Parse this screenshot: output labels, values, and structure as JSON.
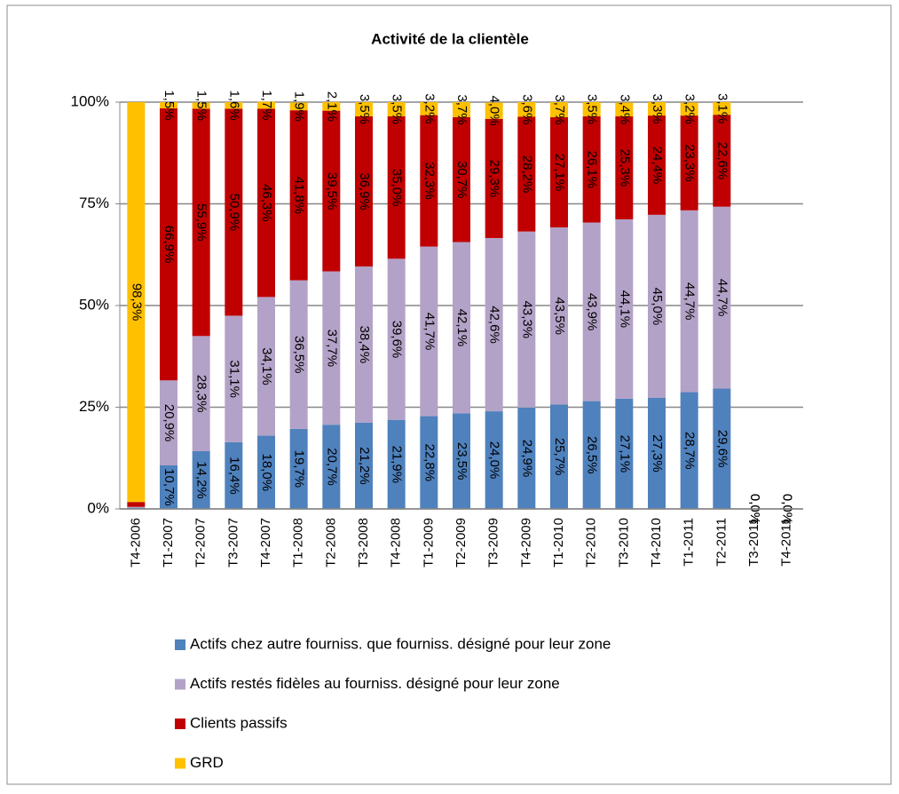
{
  "chart_data": {
    "type": "stacked_bar",
    "title": "Activité de la clientèle",
    "categories": [
      "T4-2006",
      "T1-2007",
      "T2-2007",
      "T3-2007",
      "T4-2007",
      "T1-2008",
      "T2-2008",
      "T3-2008",
      "T4-2008",
      "T1-2009",
      "T2-2009",
      "T3-2009",
      "T4-2009",
      "T1-2010",
      "T2-2010",
      "T3-2010",
      "T4-2010",
      "T1-2011",
      "T2-2011",
      "T3-2011",
      "T4-2011"
    ],
    "series": [
      {
        "name": "Actifs chez autre fourniss. que fourniss. désigné pour leur zone",
        "color": "#4f81bd",
        "values": [
          0.3,
          10.7,
          14.2,
          16.4,
          18.0,
          19.7,
          20.7,
          21.2,
          21.9,
          22.8,
          23.5,
          24.0,
          24.9,
          25.7,
          26.5,
          27.1,
          27.3,
          28.7,
          29.6,
          0,
          0
        ],
        "value_labels": [
          null,
          "10,7%",
          "14,2%",
          "16,4%",
          "18,0%",
          "19,7%",
          "20,7%",
          "21,2%",
          "21,9%",
          "22,8%",
          "23,5%",
          "24,0%",
          "24,9%",
          "25,7%",
          "26,5%",
          "27,1%",
          "27,3%",
          "28,7%",
          "29,6%",
          null,
          null
        ]
      },
      {
        "name": "Actifs restés fidèles au fourniss. désigné pour leur zone",
        "color": "#b3a2c7",
        "values": [
          0.2,
          20.9,
          28.3,
          31.1,
          34.1,
          36.5,
          37.7,
          38.4,
          39.6,
          41.7,
          42.1,
          42.6,
          43.3,
          43.5,
          43.9,
          44.1,
          45.0,
          44.7,
          44.7,
          0,
          0
        ],
        "value_labels": [
          null,
          "20,9%",
          "28,3%",
          "31,1%",
          "34,1%",
          "36,5%",
          "37,7%",
          "38,4%",
          "39,6%",
          "41,7%",
          "42,1%",
          "42,6%",
          "43,3%",
          "43,5%",
          "43,9%",
          "44,1%",
          "45,0%",
          "44,7%",
          "44,7%",
          null,
          null
        ]
      },
      {
        "name": "Clients passifs",
        "color": "#c00000",
        "values": [
          1.2,
          66.9,
          55.9,
          50.9,
          46.3,
          41.8,
          39.5,
          36.9,
          35.0,
          32.3,
          30.7,
          29.3,
          28.2,
          27.1,
          26.1,
          25.3,
          24.4,
          23.3,
          22.6,
          0,
          0
        ],
        "value_labels": [
          null,
          "66,9%",
          "55,9%",
          "50,9%",
          "46,3%",
          "41,8%",
          "39,5%",
          "36,9%",
          "35,0%",
          "32,3%",
          "30,7%",
          "29,3%",
          "28,2%",
          "27,1%",
          "26,1%",
          "25,3%",
          "24,4%",
          "23,3%",
          "22,6%",
          "0,0%",
          "0,0%"
        ]
      },
      {
        "name": "GRD",
        "color": "#ffc000",
        "values": [
          98.3,
          1.5,
          1.5,
          1.6,
          1.7,
          1.9,
          2.1,
          3.5,
          3.5,
          3.2,
          3.7,
          4.0,
          3.6,
          3.7,
          3.5,
          3.4,
          3.3,
          3.2,
          3.1,
          0,
          0
        ],
        "value_labels": [
          "98,3%",
          "1,5%",
          "1,5%",
          "1,6%",
          "1,7%",
          "1,9%",
          "2,1%",
          "3,5%",
          "3,5%",
          "3,2%",
          "3,7%",
          "4,0%",
          "3,6%",
          "3,7%",
          "3,5%",
          "3,4%",
          "3,3%",
          "3,2%",
          "3,1%",
          "0,0%",
          "0,0%"
        ]
      }
    ],
    "ylim": [
      0,
      100
    ],
    "yticks": [
      {
        "value": 0,
        "label": "0%"
      },
      {
        "value": 25,
        "label": "25%"
      },
      {
        "value": 50,
        "label": "50%"
      },
      {
        "value": 75,
        "label": "75%"
      },
      {
        "value": 100,
        "label": "100%"
      }
    ],
    "grid": true
  }
}
